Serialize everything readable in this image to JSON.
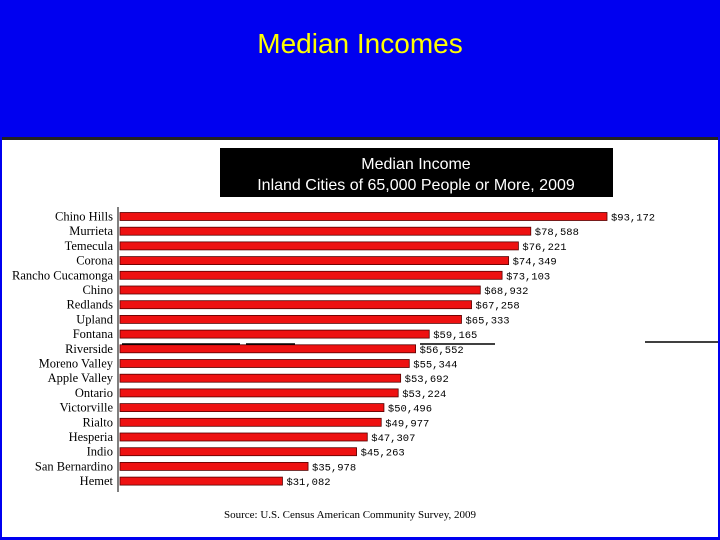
{
  "slide": {
    "title": "Median Incomes"
  },
  "chart_data": {
    "type": "bar",
    "orientation": "horizontal",
    "title": "Median Income",
    "subtitle": "Inland Cities of 65,000 People or More, 2009",
    "source": "Source:  U.S. Census American Community Survey, 2009",
    "categories": [
      "Chino Hills",
      "Murrieta",
      "Temecula",
      "Corona",
      "Rancho Cucamonga",
      "Chino",
      "Redlands",
      "Upland",
      "Fontana",
      "Riverside",
      "Moreno Valley",
      "Apple Valley",
      "Ontario",
      "Victorville",
      "Rialto",
      "Hesperia",
      "Indio",
      "San Bernardino",
      "Hemet"
    ],
    "values": [
      93172,
      78588,
      76221,
      74349,
      73103,
      68932,
      67258,
      65333,
      59165,
      56552,
      55344,
      53692,
      53224,
      50496,
      49977,
      47307,
      45263,
      35978,
      31082
    ],
    "labels": [
      "$93,172",
      "$78,588",
      "$76,221",
      "$74,349",
      "$73,103",
      "$68,932",
      "$67,258",
      "$65,333",
      "$59,165",
      "$56,552",
      "$55,344",
      "$53,692",
      "$53,224",
      "$50,496",
      "$49,977",
      "$47,307",
      "$45,263",
      "$35,978",
      "$31,082"
    ],
    "xlim": [
      0,
      93172
    ],
    "legend": "none",
    "grid": false,
    "colors": {
      "bar": "#ee1111",
      "bar_stroke": "#550000",
      "title_box": "#000000",
      "title_text": "#ffffff"
    }
  },
  "theme": {
    "background": "#0000f0",
    "title_color": "#ffff00",
    "panel": "#ffffff"
  }
}
